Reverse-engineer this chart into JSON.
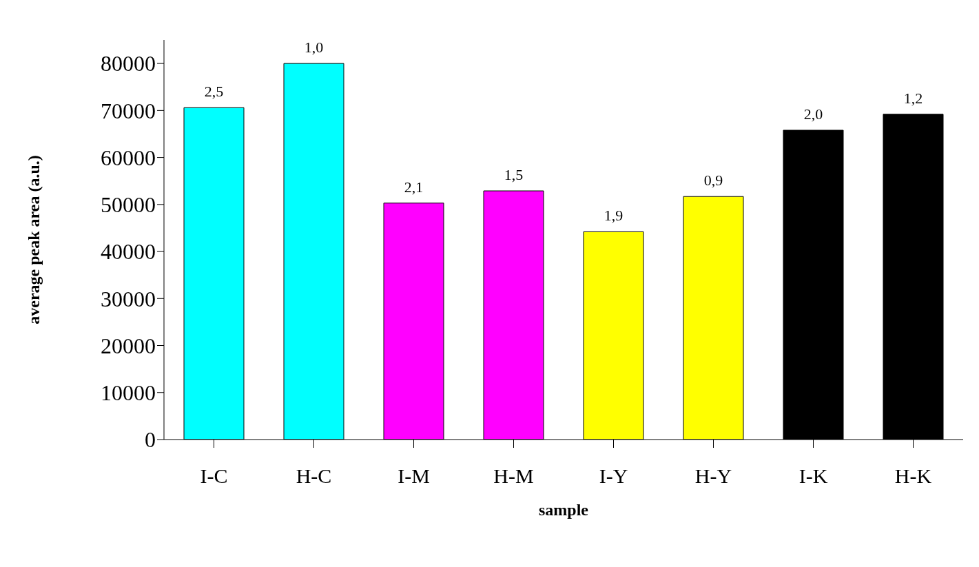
{
  "chart_data": {
    "type": "bar",
    "xlabel": "sample",
    "ylabel": "average peak area (a.u.)",
    "categories": [
      "I-C",
      "H-C",
      "I-M",
      "H-M",
      "I-Y",
      "H-Y",
      "I-K",
      "H-K"
    ],
    "values": [
      70600,
      80000,
      50300,
      52900,
      44200,
      51700,
      65800,
      69200
    ],
    "colors": [
      "#00ffff",
      "#00ffff",
      "#ff00ff",
      "#ff00ff",
      "#ffff00",
      "#ffff00",
      "#000000",
      "#000000"
    ],
    "annotations": [
      "2,5",
      "1,0",
      "2,1",
      "1,5",
      "1,9",
      "0,9",
      "2,0",
      "1,2"
    ],
    "ylim": [
      0,
      85000
    ],
    "yticks": [
      0,
      10000,
      20000,
      30000,
      40000,
      50000,
      60000,
      70000,
      80000
    ],
    "grid": false
  }
}
